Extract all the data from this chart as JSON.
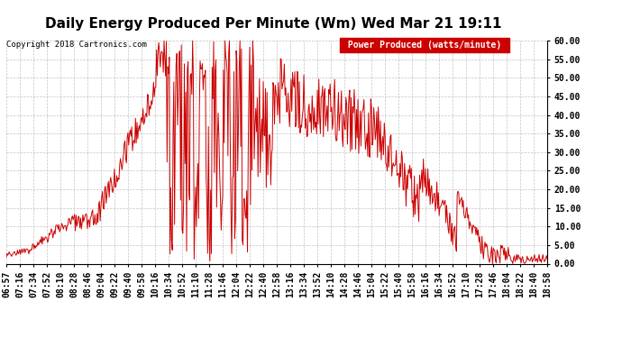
{
  "title": "Daily Energy Produced Per Minute (Wm) Wed Mar 21 19:11",
  "copyright": "Copyright 2018 Cartronics.com",
  "legend_label": "Power Produced (watts/minute)",
  "legend_bg": "#cc0000",
  "legend_fg": "#ffffff",
  "line_color": "#cc0000",
  "bg_color": "#ffffff",
  "plot_bg": "#ffffff",
  "grid_color": "#aaaaaa",
  "ylim": [
    0,
    60
  ],
  "yticks": [
    0,
    5,
    10,
    15,
    20,
    25,
    30,
    35,
    40,
    45,
    50,
    55,
    60
  ],
  "title_fontsize": 11,
  "tick_fontsize": 7,
  "x_tick_labels": [
    "06:57",
    "07:16",
    "07:34",
    "07:52",
    "08:10",
    "08:28",
    "08:46",
    "09:04",
    "09:22",
    "09:40",
    "09:58",
    "10:16",
    "10:34",
    "10:52",
    "11:10",
    "11:28",
    "11:46",
    "12:04",
    "12:22",
    "12:40",
    "12:58",
    "13:16",
    "13:34",
    "13:52",
    "14:10",
    "14:28",
    "14:46",
    "15:04",
    "15:22",
    "15:40",
    "15:58",
    "16:16",
    "16:34",
    "16:52",
    "17:10",
    "17:28",
    "17:46",
    "18:04",
    "18:22",
    "18:40",
    "18:58"
  ]
}
